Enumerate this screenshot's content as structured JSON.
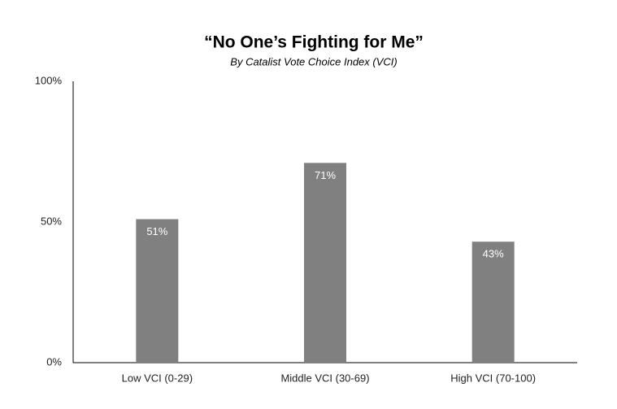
{
  "chart_data": {
    "type": "bar",
    "title": "“No One’s Fighting for Me”",
    "subtitle": "By Catalist Vote Choice Index (VCI)",
    "categories": [
      "Low VCI (0-29)",
      "Middle VCI (30-69)",
      "High VCI (70-100)"
    ],
    "values": [
      51,
      71,
      43
    ],
    "value_labels": [
      "51%",
      "71%",
      "43%"
    ],
    "color": "#808080",
    "ylim": [
      0,
      100
    ],
    "yticks": [
      {
        "value": 0,
        "label": "0%"
      },
      {
        "value": 50,
        "label": "50%"
      },
      {
        "value": 100,
        "label": "100%"
      }
    ],
    "grid": false
  }
}
